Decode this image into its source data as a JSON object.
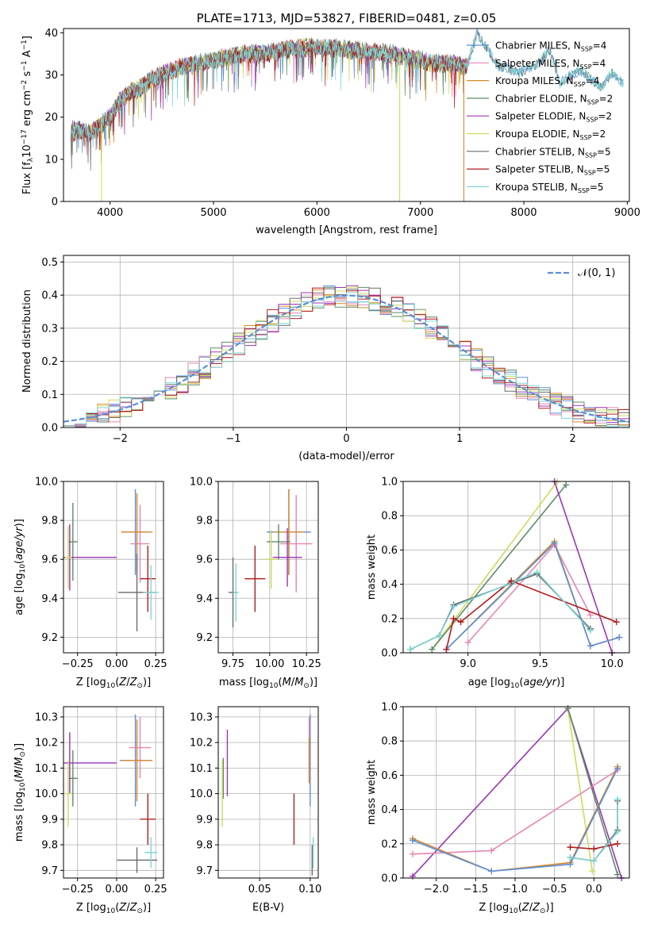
{
  "colors": {
    "chabrier_miles": "#5b8fd6",
    "salpeter_miles": "#e685b5",
    "kroupa_miles": "#d98a2b",
    "chabrier_elodie": "#5e8a68",
    "salpeter_elodie": "#9b35b5",
    "kroupa_elodie": "#cddc5a",
    "chabrier_stelib": "#6b6b6b",
    "salpeter_stelib": "#b01e1e",
    "kroupa_stelib": "#7fd6d6",
    "gaussian": "#5b8fd6",
    "grid": "#b0b0b0"
  },
  "chart_data": [
    {
      "id": "spectrum",
      "type": "line",
      "title": "PLATE=1713, MJD=53827, FIBERID=0481, z=0.05",
      "xlabel": "wavelength [Angstrom, rest frame]",
      "ylabel": "Flux [f_λ10^-17 erg cm^-2 s^-1 A^-1]",
      "xlim": [
        3550,
        9020
      ],
      "ylim": [
        0,
        41
      ],
      "xticks": [
        "4000",
        "5000",
        "6000",
        "7000",
        "8000",
        "9000"
      ],
      "yticks": [
        "0",
        "10",
        "20",
        "30",
        "40"
      ],
      "legend": [
        "Chabrier MILES, N_SSP=4",
        "Salpeter MILES, N_SSP=4",
        "Kroupa MILES, N_SSP=4",
        "Chabrier ELODIE, N_SSP=2",
        "Salpeter ELODIE, N_SSP=2",
        "Kroupa ELODIE, N_SSP=2",
        "Chabrier STELIB, N_SSP=5",
        "Salpeter STELIB, N_SSP=5",
        "Kroupa STELIB, N_SSP=5"
      ],
      "continuum": {
        "x": [
          3620,
          3700,
          3800,
          3900,
          3950,
          4000,
          4100,
          4200,
          4300,
          4400,
          4500,
          4700,
          4900,
          5100,
          5300,
          5500,
          5700,
          5900,
          6100,
          6300,
          6500,
          6700,
          6900,
          7100,
          7300,
          7450
        ],
        "y": [
          17,
          17,
          16,
          18,
          19,
          20,
          24,
          26,
          27,
          29,
          30,
          32,
          33,
          34,
          35,
          35,
          36,
          36.5,
          36.5,
          36,
          35.5,
          35,
          34,
          33,
          32.5,
          32
        ]
      },
      "continuum_ext": {
        "x": [
          7450,
          7550,
          7650,
          7750,
          7850,
          7950,
          8050,
          8150,
          8250,
          8350,
          8450,
          8550,
          8650,
          8750,
          8850,
          8950
        ],
        "y": [
          32,
          40,
          36,
          32,
          31.5,
          30.5,
          31.5,
          33,
          36,
          28,
          30,
          31,
          29,
          27,
          30.5,
          28
        ]
      },
      "drops": [
        {
          "x": 3917,
          "y": 0
        },
        {
          "x": 6800,
          "y": 0
        },
        {
          "x": 7420,
          "y": 0
        }
      ]
    },
    {
      "id": "residual_hist",
      "type": "bar",
      "xlabel": "(data-model)/error",
      "ylabel": "Normed distribution",
      "xlim": [
        -2.5,
        2.5
      ],
      "ylim": [
        0,
        0.52
      ],
      "xticks": [
        "−2",
        "−1",
        "0",
        "1",
        "2"
      ],
      "yticks": [
        "0.0",
        "0.1",
        "0.2",
        "0.3",
        "0.4",
        "0.5"
      ],
      "legend": [
        "𝒩(0, 1)"
      ],
      "bin_width": 0.1
    },
    {
      "id": "age_vs_Z",
      "type": "scatter",
      "xlabel": "Z [log10(Z/Z⊙)]",
      "ylabel": "age  [log10(age/yr)]",
      "xlim": [
        -0.34,
        0.3
      ],
      "ylim": [
        9.12,
        10.0
      ],
      "xticks": [
        "−0.25",
        "0.00",
        "0.25"
      ],
      "yticks": [
        "9.2",
        "9.4",
        "9.6",
        "9.8",
        "10.0"
      ],
      "points": [
        {
          "model": "chabrier_miles",
          "x": 0.12,
          "y": 9.74,
          "xerr": 0.09,
          "yerr": 0.22
        },
        {
          "model": "salpeter_miles",
          "x": 0.15,
          "y": 9.68,
          "xerr": 0.06,
          "yerr": 0.2
        },
        {
          "model": "kroupa_miles",
          "x": 0.13,
          "y": 9.74,
          "xerr": 0.1,
          "yerr": 0.2
        },
        {
          "model": "chabrier_elodie",
          "x": -0.28,
          "y": 9.69,
          "xerr": 0.03,
          "yerr": 0.2
        },
        {
          "model": "salpeter_elodie",
          "x": -0.3,
          "y": 9.61,
          "xerr": 0.3,
          "yerr": 0.17
        },
        {
          "model": "kroupa_elodie",
          "x": -0.31,
          "y": 9.61,
          "xerr": 0.02,
          "yerr": 0.16
        },
        {
          "model": "chabrier_stelib",
          "x": 0.13,
          "y": 9.43,
          "xerr": 0.12,
          "yerr": 0.2
        },
        {
          "model": "salpeter_stelib",
          "x": 0.2,
          "y": 9.5,
          "xerr": 0.05,
          "yerr": 0.17
        },
        {
          "model": "kroupa_stelib",
          "x": 0.22,
          "y": 9.43,
          "xerr": 0.05,
          "yerr": 0.14
        }
      ]
    },
    {
      "id": "age_vs_mass",
      "type": "scatter",
      "xlabel": "mass [log10(M/M⊙)]",
      "ylabel": "",
      "xlim": [
        9.65,
        10.33
      ],
      "ylim": [
        9.12,
        10.0
      ],
      "xticks": [
        "9.75",
        "10.00",
        "10.25"
      ],
      "yticks": [
        "9.2",
        "9.4",
        "9.6",
        "9.8",
        "10.0"
      ],
      "points": [
        {
          "model": "chabrier_miles",
          "x": 10.13,
          "y": 9.74,
          "xerr": 0.15,
          "yerr": 0.22
        },
        {
          "model": "salpeter_miles",
          "x": 10.18,
          "y": 9.68,
          "xerr": 0.11,
          "yerr": 0.25
        },
        {
          "model": "kroupa_miles",
          "x": 10.13,
          "y": 9.74,
          "xerr": 0.1,
          "yerr": 0.22
        },
        {
          "model": "chabrier_elodie",
          "x": 10.06,
          "y": 9.69,
          "xerr": 0.08,
          "yerr": 0.09
        },
        {
          "model": "salpeter_elodie",
          "x": 10.12,
          "y": 9.61,
          "xerr": 0.1,
          "yerr": 0.15
        },
        {
          "model": "kroupa_elodie",
          "x": 10.01,
          "y": 9.6,
          "xerr": 0.04,
          "yerr": 0.15
        },
        {
          "model": "chabrier_stelib",
          "x": 9.75,
          "y": 9.43,
          "xerr": 0.03,
          "yerr": 0.18
        },
        {
          "model": "salpeter_stelib",
          "x": 9.9,
          "y": 9.5,
          "xerr": 0.07,
          "yerr": 0.17
        },
        {
          "model": "kroupa_stelib",
          "x": 9.77,
          "y": 9.43,
          "xerr": 0.02,
          "yerr": 0.15
        }
      ]
    },
    {
      "id": "mass_weight_vs_age",
      "type": "line",
      "xlabel": "age  [log10(age/yr)]",
      "ylabel": "mass weight",
      "xlim": [
        8.55,
        10.12
      ],
      "ylim": [
        0,
        1.0
      ],
      "xticks": [
        "9.0",
        "9.5",
        "10.0"
      ],
      "yticks": [
        "0.0",
        "0.2",
        "0.4",
        "0.6",
        "0.8",
        "1.0"
      ],
      "series": [
        {
          "model": "kroupa_elodie",
          "x": [
            8.75,
            9.62
          ],
          "y": [
            0.02,
            1.0
          ]
        },
        {
          "model": "chabrier_elodie",
          "x": [
            8.75,
            9.68
          ],
          "y": [
            0.02,
            0.98
          ]
        },
        {
          "model": "salpeter_elodie",
          "x": [
            9.6,
            10.0
          ],
          "y": [
            1.0,
            0.0
          ]
        },
        {
          "model": "salpeter_miles",
          "x": [
            9.0,
            9.6,
            9.85
          ],
          "y": [
            0.06,
            0.63,
            0.22
          ]
        },
        {
          "model": "kroupa_miles",
          "x": [
            8.85,
            9.6,
            9.85,
            10.05
          ],
          "y": [
            0.02,
            0.65,
            0.04,
            0.09
          ]
        },
        {
          "model": "chabrier_miles",
          "x": [
            8.85,
            9.6,
            9.85,
            10.05
          ],
          "y": [
            0.02,
            0.64,
            0.04,
            0.09
          ]
        },
        {
          "model": "salpeter_stelib",
          "x": [
            8.85,
            8.9,
            8.95,
            9.3,
            10.03
          ],
          "y": [
            0.02,
            0.2,
            0.18,
            0.42,
            0.18
          ]
        },
        {
          "model": "chabrier_stelib",
          "x": [
            8.6,
            8.8,
            8.9,
            9.48,
            9.85
          ],
          "y": [
            0.02,
            0.1,
            0.28,
            0.46,
            0.14
          ]
        },
        {
          "model": "kroupa_stelib",
          "x": [
            8.6,
            8.8,
            8.9,
            9.48,
            9.85
          ],
          "y": [
            0.02,
            0.1,
            0.27,
            0.47,
            0.13
          ]
        }
      ]
    },
    {
      "id": "mass_vs_Z",
      "type": "scatter",
      "xlabel": "Z [log10(Z/Z⊙)]",
      "ylabel": "mass [log10(M/M⊙)]",
      "xlim": [
        -0.34,
        0.3
      ],
      "ylim": [
        9.67,
        10.34
      ],
      "xticks": [
        "−0.25",
        "0.00",
        "0.25"
      ],
      "yticks": [
        "9.7",
        "9.8",
        "9.9",
        "10.0",
        "10.1",
        "10.2",
        "10.3"
      ],
      "points": [
        {
          "model": "chabrier_miles",
          "x": 0.12,
          "y": 10.13,
          "xerr": 0.1,
          "yerr": 0.18
        },
        {
          "model": "salpeter_miles",
          "x": 0.15,
          "y": 10.18,
          "xerr": 0.07,
          "yerr": 0.12
        },
        {
          "model": "kroupa_miles",
          "x": 0.13,
          "y": 10.13,
          "xerr": 0.1,
          "yerr": 0.16
        },
        {
          "model": "chabrier_elodie",
          "x": -0.28,
          "y": 10.06,
          "xerr": 0.03,
          "yerr": 0.11
        },
        {
          "model": "salpeter_elodie",
          "x": -0.3,
          "y": 10.12,
          "xerr": 0.3,
          "yerr": 0.12
        },
        {
          "model": "kroupa_elodie",
          "x": -0.31,
          "y": 10.0,
          "xerr": 0.02,
          "yerr": 0.13
        },
        {
          "model": "chabrier_stelib",
          "x": 0.13,
          "y": 9.74,
          "xerr": 0.13,
          "yerr": 0.05
        },
        {
          "model": "salpeter_stelib",
          "x": 0.2,
          "y": 9.9,
          "xerr": 0.05,
          "yerr": 0.1
        },
        {
          "model": "kroupa_stelib",
          "x": 0.22,
          "y": 9.77,
          "xerr": 0.04,
          "yerr": 0.06
        }
      ]
    },
    {
      "id": "mass_vs_ebv",
      "type": "scatter",
      "xlabel": "E(B-V)",
      "ylabel": "",
      "xlim": [
        0.009,
        0.108
      ],
      "ylim": [
        9.67,
        10.34
      ],
      "xticks": [
        "0.05",
        "0.10"
      ],
      "yticks": [
        "9.7",
        "9.8",
        "9.9",
        "10.0",
        "10.1",
        "10.2",
        "10.3"
      ],
      "points": [
        {
          "model": "chabrier_miles",
          "x": 0.1,
          "y": 10.13,
          "xerr": 0,
          "yerr": 0.18
        },
        {
          "model": "salpeter_miles",
          "x": 0.099,
          "y": 10.18,
          "xerr": 0,
          "yerr": 0.12
        },
        {
          "model": "kroupa_miles",
          "x": 0.099,
          "y": 10.13,
          "xerr": 0,
          "yerr": 0.09
        },
        {
          "model": "chabrier_elodie",
          "x": 0.014,
          "y": 10.06,
          "xerr": 0,
          "yerr": 0.08
        },
        {
          "model": "salpeter_elodie",
          "x": 0.018,
          "y": 10.12,
          "xerr": 0,
          "yerr": 0.13
        },
        {
          "model": "kroupa_elodie",
          "x": 0.013,
          "y": 10.0,
          "xerr": 0,
          "yerr": 0.13
        },
        {
          "model": "chabrier_stelib",
          "x": 0.102,
          "y": 9.74,
          "xerr": 0,
          "yerr": 0.06
        },
        {
          "model": "salpeter_stelib",
          "x": 0.084,
          "y": 9.9,
          "xerr": 0,
          "yerr": 0.1
        },
        {
          "model": "kroupa_stelib",
          "x": 0.103,
          "y": 9.77,
          "xerr": 0,
          "yerr": 0.06
        }
      ]
    },
    {
      "id": "mass_weight_vs_Z",
      "type": "line",
      "xlabel": "Z [log10(Z/Z⊙)]",
      "ylabel": "mass weight",
      "xlim": [
        -2.42,
        0.45
      ],
      "ylim": [
        0,
        1.0
      ],
      "xticks": [
        "−2.0",
        "−1.5",
        "−1.0",
        "−0.5",
        "0.0"
      ],
      "yticks": [
        "0.0",
        "0.2",
        "0.4",
        "0.6",
        "0.8",
        "1.0"
      ],
      "series": [
        {
          "model": "salpeter_elodie",
          "x": [
            -2.3,
            -0.33,
            0.35
          ],
          "y": [
            0.01,
            0.99,
            0.0
          ]
        },
        {
          "model": "kroupa_elodie",
          "x": [
            -0.33,
            -0.02
          ],
          "y": [
            0.99,
            0.04
          ]
        },
        {
          "model": "chabrier_elodie",
          "x": [
            -0.33,
            0.3
          ],
          "y": [
            0.99,
            0.02
          ]
        },
        {
          "model": "salpeter_miles",
          "x": [
            -2.3,
            -1.3,
            0.3
          ],
          "y": [
            0.14,
            0.16,
            0.63
          ]
        },
        {
          "model": "kroupa_miles",
          "x": [
            -2.3,
            -1.3,
            -0.3,
            0.3
          ],
          "y": [
            0.23,
            0.04,
            0.09,
            0.65
          ]
        },
        {
          "model": "chabrier_miles",
          "x": [
            -2.3,
            -1.3,
            -0.3,
            0.3
          ],
          "y": [
            0.22,
            0.04,
            0.08,
            0.64
          ]
        },
        {
          "model": "salpeter_stelib",
          "x": [
            -0.3,
            0.0,
            0.3
          ],
          "y": [
            0.18,
            0.17,
            0.2
          ]
        },
        {
          "model": "chabrier_stelib",
          "x": [
            -0.3,
            0.0,
            0.3,
            0.3
          ],
          "y": [
            0.12,
            0.1,
            0.28,
            0.45
          ]
        },
        {
          "model": "kroupa_stelib",
          "x": [
            -0.3,
            0.0,
            0.3,
            0.3
          ],
          "y": [
            0.12,
            0.1,
            0.27,
            0.46
          ]
        }
      ]
    }
  ]
}
